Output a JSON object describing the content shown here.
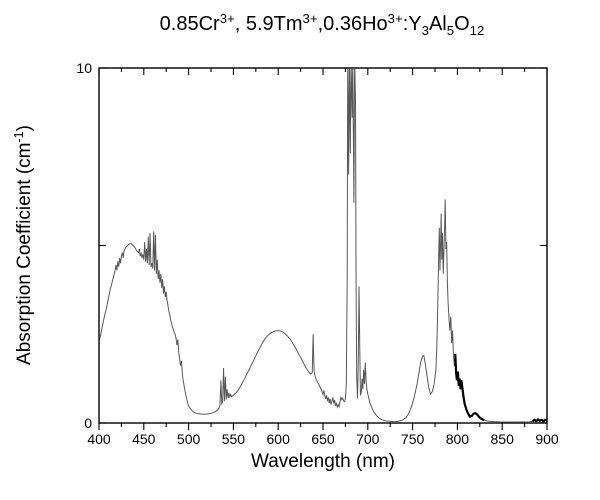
{
  "title_parts": [
    {
      "t": "0.85Cr"
    },
    {
      "sup": "3+"
    },
    {
      "t": ", 5.9Tm"
    },
    {
      "sup": "3+"
    },
    {
      "t": ",0.36Ho"
    },
    {
      "sup": "3+"
    },
    {
      "t": ":Y"
    },
    {
      "sub": "3"
    },
    {
      "t": "Al"
    },
    {
      "sub": "5"
    },
    {
      "t": "O"
    },
    {
      "sub": "12"
    }
  ],
  "axes": {
    "x_label": "Wavelength (nm)",
    "y_label_parts": [
      {
        "t": "Absorption Coefficient (cm"
      },
      {
        "sup": "-1"
      },
      {
        "t": ")"
      }
    ],
    "x_range": [
      400,
      900
    ],
    "y_range": [
      0,
      10
    ],
    "x_ticks": [
      400,
      450,
      500,
      550,
      600,
      650,
      700,
      750,
      800,
      850,
      900
    ],
    "x_minor_step": 25,
    "y_ticks_all": [
      0,
      5,
      10
    ],
    "y_ticks_labeled": [
      {
        "v": 0,
        "label": "0"
      },
      {
        "v": 10,
        "label": "10"
      }
    ]
  },
  "colors": {
    "background": "#ffffff",
    "frame": "#000000",
    "text": "#000000",
    "curve": "#585858",
    "curve_bold": "#000000"
  },
  "chart_data": {
    "type": "line",
    "title": "0.85Cr³⁺, 5.9Tm³⁺,0.36Ho³⁺:Y₃Al₅O₁₂",
    "xlabel": "Wavelength (nm)",
    "ylabel": "Absorption Coefficient (cm⁻¹)",
    "xlim": [
      400,
      900
    ],
    "ylim": [
      0,
      10
    ],
    "grid": false,
    "legend": "none",
    "notes": "Single gray absorption spectrum; sharp lines near 680-686 nm exceed the axis and are clipped at 10; trace drawn thicker/black near 800-830 nm and as specks near 885-900 nm.",
    "bold_ranges": [
      [
        797,
        831
      ],
      [
        883,
        900
      ]
    ],
    "series": [
      {
        "name": "absorption-spectrum",
        "points": [
          [
            400,
            2.3
          ],
          [
            402,
            2.5
          ],
          [
            404,
            2.75
          ],
          [
            406,
            3.0
          ],
          [
            408,
            3.2
          ],
          [
            410,
            3.45
          ],
          [
            412,
            3.7
          ],
          [
            414,
            3.9
          ],
          [
            416,
            4.1
          ],
          [
            418,
            4.3
          ],
          [
            419,
            4.45
          ],
          [
            420,
            4.3
          ],
          [
            421,
            4.55
          ],
          [
            422,
            4.4
          ],
          [
            423,
            4.65
          ],
          [
            424,
            4.5
          ],
          [
            425,
            4.7
          ],
          [
            426,
            4.8
          ],
          [
            427,
            4.65
          ],
          [
            428,
            4.85
          ],
          [
            430,
            4.95
          ],
          [
            432,
            5.0
          ],
          [
            434,
            5.05
          ],
          [
            436,
            5.05
          ],
          [
            438,
            5.0
          ],
          [
            440,
            4.95
          ],
          [
            442,
            4.85
          ],
          [
            444,
            4.8
          ],
          [
            445,
            4.9
          ],
          [
            446,
            4.7
          ],
          [
            447,
            4.8
          ],
          [
            448,
            4.65
          ],
          [
            449,
            4.75
          ],
          [
            450,
            4.6
          ],
          [
            451,
            5.1
          ],
          [
            452,
            4.55
          ],
          [
            453,
            4.9
          ],
          [
            454,
            4.5
          ],
          [
            455,
            5.25
          ],
          [
            456,
            4.45
          ],
          [
            457,
            5.35
          ],
          [
            458,
            4.4
          ],
          [
            459,
            4.5
          ],
          [
            460,
            4.35
          ],
          [
            461,
            5.4
          ],
          [
            462,
            4.3
          ],
          [
            463,
            5.3
          ],
          [
            464,
            4.2
          ],
          [
            465,
            4.6
          ],
          [
            466,
            4.05
          ],
          [
            467,
            4.3
          ],
          [
            468,
            3.95
          ],
          [
            469,
            4.2
          ],
          [
            470,
            3.8
          ],
          [
            471,
            4.05
          ],
          [
            472,
            3.65
          ],
          [
            473,
            3.85
          ],
          [
            474,
            3.55
          ],
          [
            475,
            3.7
          ],
          [
            476,
            3.45
          ],
          [
            477,
            3.3
          ],
          [
            478,
            3.15
          ],
          [
            479,
            3.05
          ],
          [
            480,
            2.9
          ],
          [
            481,
            2.8
          ],
          [
            482,
            2.7
          ],
          [
            483,
            2.62
          ],
          [
            484,
            2.55
          ],
          [
            485,
            2.5
          ],
          [
            486,
            2.38
          ],
          [
            487,
            2.2
          ],
          [
            488,
            2.35
          ],
          [
            489,
            2.0
          ],
          [
            490,
            1.8
          ],
          [
            491,
            1.62
          ],
          [
            492,
            1.75
          ],
          [
            493,
            1.4
          ],
          [
            494,
            1.2
          ],
          [
            495,
            1.05
          ],
          [
            496,
            0.9
          ],
          [
            497,
            0.78
          ],
          [
            498,
            0.66
          ],
          [
            499,
            0.56
          ],
          [
            500,
            0.48
          ],
          [
            502,
            0.4
          ],
          [
            504,
            0.34
          ],
          [
            506,
            0.3
          ],
          [
            508,
            0.28
          ],
          [
            511,
            0.26
          ],
          [
            514,
            0.25
          ],
          [
            517,
            0.25
          ],
          [
            520,
            0.25
          ],
          [
            523,
            0.26
          ],
          [
            526,
            0.28
          ],
          [
            529,
            0.31
          ],
          [
            532,
            0.36
          ],
          [
            534,
            0.42
          ],
          [
            535,
            0.5
          ],
          [
            536,
            1.2
          ],
          [
            537,
            0.55
          ],
          [
            538,
            0.6
          ],
          [
            539,
            1.55
          ],
          [
            540,
            0.62
          ],
          [
            541,
            1.3
          ],
          [
            542,
            0.66
          ],
          [
            543,
            0.95
          ],
          [
            544,
            0.7
          ],
          [
            545,
            0.85
          ],
          [
            546,
            0.72
          ],
          [
            547,
            0.8
          ],
          [
            548,
            0.74
          ],
          [
            550,
            0.78
          ],
          [
            553,
            0.85
          ],
          [
            556,
            0.95
          ],
          [
            559,
            1.08
          ],
          [
            562,
            1.22
          ],
          [
            565,
            1.38
          ],
          [
            568,
            1.52
          ],
          [
            571,
            1.68
          ],
          [
            574,
            1.84
          ],
          [
            577,
            2.0
          ],
          [
            580,
            2.14
          ],
          [
            583,
            2.28
          ],
          [
            586,
            2.4
          ],
          [
            589,
            2.48
          ],
          [
            592,
            2.54
          ],
          [
            595,
            2.58
          ],
          [
            598,
            2.6
          ],
          [
            601,
            2.6
          ],
          [
            604,
            2.58
          ],
          [
            607,
            2.53
          ],
          [
            610,
            2.46
          ],
          [
            613,
            2.37
          ],
          [
            616,
            2.26
          ],
          [
            619,
            2.13
          ],
          [
            622,
            1.99
          ],
          [
            625,
            1.85
          ],
          [
            628,
            1.7
          ],
          [
            631,
            1.56
          ],
          [
            634,
            1.44
          ],
          [
            636,
            1.38
          ],
          [
            638,
            1.42
          ],
          [
            639,
            2.5
          ],
          [
            640,
            1.5
          ],
          [
            641,
            1.32
          ],
          [
            643,
            1.2
          ],
          [
            645,
            1.1
          ],
          [
            647,
            1.0
          ],
          [
            649,
            0.88
          ],
          [
            650,
            0.8
          ],
          [
            651,
            0.92
          ],
          [
            652,
            0.78
          ],
          [
            653,
            0.68
          ],
          [
            654,
            0.78
          ],
          [
            655,
            0.62
          ],
          [
            656,
            0.72
          ],
          [
            657,
            0.56
          ],
          [
            658,
            0.68
          ],
          [
            659,
            0.52
          ],
          [
            660,
            0.62
          ],
          [
            661,
            0.72
          ],
          [
            662,
            0.55
          ],
          [
            663,
            0.65
          ],
          [
            664,
            0.48
          ],
          [
            665,
            0.55
          ],
          [
            666,
            0.45
          ],
          [
            667,
            0.52
          ],
          [
            668,
            0.46
          ],
          [
            669,
            0.6
          ],
          [
            670,
            0.72
          ],
          [
            671,
            0.66
          ],
          [
            672,
            0.7
          ],
          [
            673,
            0.62
          ],
          [
            674,
            0.6
          ],
          [
            675,
            0.68
          ],
          [
            676,
            1.1
          ],
          [
            677,
            4.0
          ],
          [
            677.6,
            10.3
          ],
          [
            678.6,
            7.0
          ],
          [
            679.4,
            10.3
          ],
          [
            680.5,
            7.6
          ],
          [
            681.3,
            10.3
          ],
          [
            682.5,
            8.6
          ],
          [
            683.2,
            10.3
          ],
          [
            684.5,
            6.2
          ],
          [
            685.3,
            10.3
          ],
          [
            686.3,
            9.0
          ],
          [
            686.9,
            4.0
          ],
          [
            687.6,
            1.3
          ],
          [
            688.5,
            0.7
          ],
          [
            689.3,
            1.6
          ],
          [
            690.2,
            3.85
          ],
          [
            691,
            2.2
          ],
          [
            691.8,
            0.78
          ],
          [
            692.8,
            0.88
          ],
          [
            693.6,
            1.25
          ],
          [
            694.5,
            0.95
          ],
          [
            695.4,
            1.5
          ],
          [
            696.3,
            1.1
          ],
          [
            697.2,
            1.7
          ],
          [
            698.2,
            1.15
          ],
          [
            699,
            0.95
          ],
          [
            700,
            0.82
          ],
          [
            701.5,
            0.65
          ],
          [
            703,
            0.52
          ],
          [
            705,
            0.4
          ],
          [
            707,
            0.3
          ],
          [
            710,
            0.2
          ],
          [
            713,
            0.13
          ],
          [
            716,
            0.09
          ],
          [
            720,
            0.06
          ],
          [
            724,
            0.05
          ],
          [
            728,
            0.04
          ],
          [
            732,
            0.04
          ],
          [
            736,
            0.06
          ],
          [
            740,
            0.1
          ],
          [
            743,
            0.16
          ],
          [
            746,
            0.28
          ],
          [
            749,
            0.48
          ],
          [
            752,
            0.75
          ],
          [
            755,
            1.1
          ],
          [
            757,
            1.4
          ],
          [
            759,
            1.7
          ],
          [
            761,
            1.88
          ],
          [
            762.5,
            1.9
          ],
          [
            764,
            1.7
          ],
          [
            766,
            1.35
          ],
          [
            768,
            1.0
          ],
          [
            770,
            0.82
          ],
          [
            772,
            0.88
          ],
          [
            774,
            1.1
          ],
          [
            776,
            1.5
          ],
          [
            777,
            2.1
          ],
          [
            778,
            3.2
          ],
          [
            779,
            4.6
          ],
          [
            779.8,
            5.5
          ],
          [
            780.5,
            4.3
          ],
          [
            781.2,
            5.0
          ],
          [
            781.9,
            5.9
          ],
          [
            782.6,
            4.6
          ],
          [
            783.3,
            5.35
          ],
          [
            784.2,
            4.2
          ],
          [
            785,
            4.9
          ],
          [
            785.8,
            5.6
          ],
          [
            786.4,
            6.3
          ],
          [
            787.2,
            4.9
          ],
          [
            788,
            5.1
          ],
          [
            788.8,
            4.0
          ],
          [
            789.6,
            3.4
          ],
          [
            790.6,
            2.95
          ],
          [
            791.6,
            2.6
          ],
          [
            792.6,
            3.0
          ],
          [
            793.6,
            2.25
          ],
          [
            794.6,
            2.6
          ],
          [
            795.6,
            1.9
          ],
          [
            796.6,
            1.6
          ],
          [
            797.6,
            1.95
          ],
          [
            798.6,
            1.4
          ],
          [
            799.5,
            1.2
          ],
          [
            800.5,
            1.45
          ],
          [
            801.5,
            1.05
          ],
          [
            802.5,
            1.25
          ],
          [
            803.5,
            0.95
          ],
          [
            804.5,
            1.2
          ],
          [
            805.5,
            1.0
          ],
          [
            806.5,
            0.8
          ],
          [
            808,
            0.55
          ],
          [
            810,
            0.38
          ],
          [
            812,
            0.26
          ],
          [
            814,
            0.18
          ],
          [
            816,
            0.2
          ],
          [
            818,
            0.26
          ],
          [
            820,
            0.28
          ],
          [
            822,
            0.24
          ],
          [
            824,
            0.18
          ],
          [
            826,
            0.13
          ],
          [
            828,
            0.1
          ],
          [
            830,
            0.08
          ],
          [
            833,
            0.06
          ],
          [
            836,
            0.05
          ],
          [
            840,
            0.04
          ],
          [
            844,
            0.035
          ],
          [
            848,
            0.03
          ],
          [
            852,
            0.03
          ],
          [
            856,
            0.028
          ],
          [
            860,
            0.03
          ],
          [
            864,
            0.028
          ],
          [
            868,
            0.03
          ],
          [
            872,
            0.032
          ],
          [
            876,
            0.03
          ],
          [
            880,
            0.032
          ],
          [
            884,
            0.05
          ],
          [
            886,
            0.09
          ],
          [
            888,
            0.05
          ],
          [
            890,
            0.1
          ],
          [
            892,
            0.06
          ],
          [
            894,
            0.09
          ],
          [
            896,
            0.05
          ],
          [
            898,
            0.09
          ],
          [
            900,
            0.06
          ]
        ]
      }
    ]
  }
}
